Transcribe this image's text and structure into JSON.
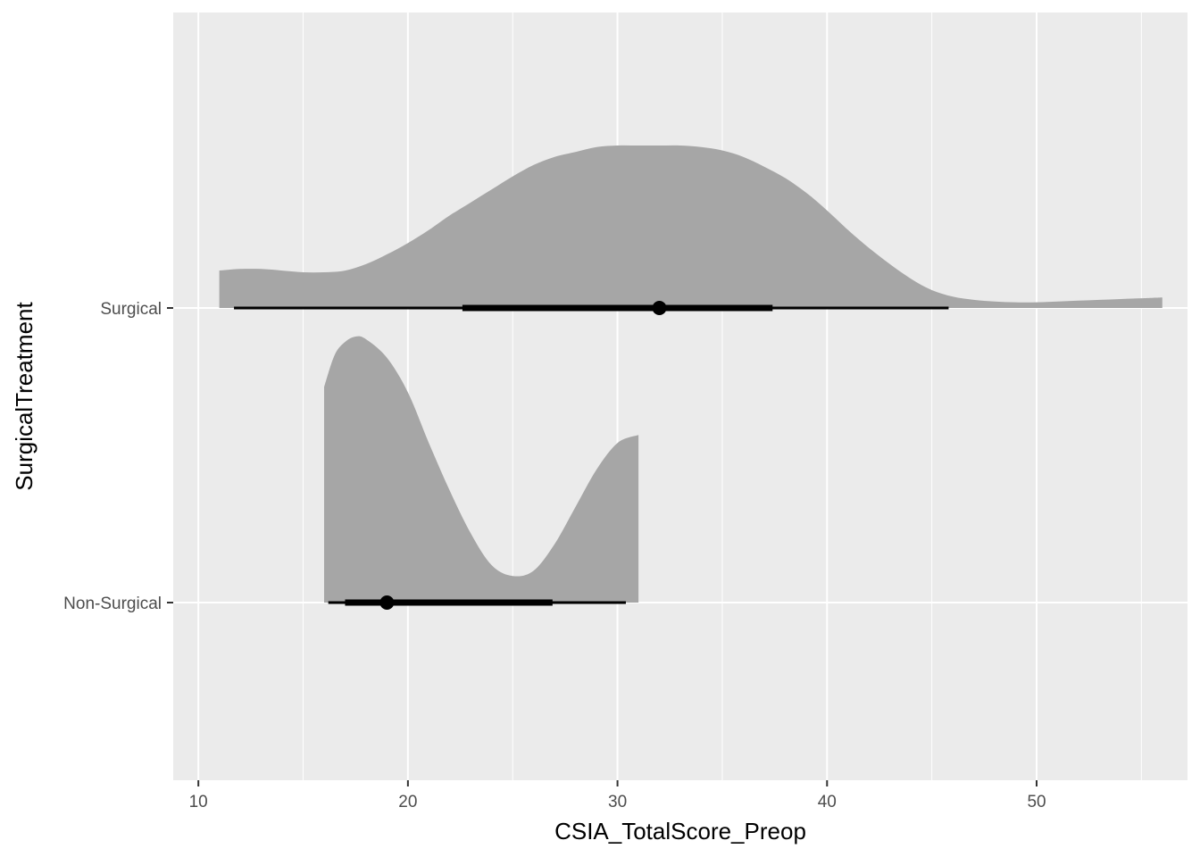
{
  "chart_data": {
    "type": "halfeye",
    "xlabel": "CSIA_TotalScore_Preop",
    "ylabel": "SurgicalTreatment",
    "xlim": [
      8.8,
      57.2
    ],
    "x_ticks": [
      10,
      20,
      30,
      40,
      50
    ],
    "x_minor_ticks": [
      15,
      25,
      35,
      45,
      55
    ],
    "categories": [
      "Non-Surgical",
      "Surgical"
    ],
    "grid": true,
    "colors": {
      "panel": "#ebebeb",
      "grid": "#ffffff",
      "density_fill": "#a6a6a6",
      "interval": "#000000",
      "tick_label": "#4d4d4d"
    },
    "series": [
      {
        "category": "Non-Surgical",
        "density": {
          "x": [
            16,
            16.5,
            17,
            17.5,
            18,
            19,
            20,
            21,
            22,
            23,
            24,
            25,
            26,
            27,
            28,
            29,
            30,
            31
          ],
          "y": [
            0.81,
            0.93,
            0.98,
            1.0,
            0.99,
            0.92,
            0.79,
            0.6,
            0.42,
            0.26,
            0.14,
            0.1,
            0.12,
            0.22,
            0.36,
            0.5,
            0.6,
            0.63
          ]
        },
        "median": 19,
        "interval_66": [
          17,
          26.9
        ],
        "interval_95": [
          16.2,
          30.4
        ]
      },
      {
        "category": "Surgical",
        "density": {
          "x": [
            11,
            12,
            13,
            14,
            15,
            16,
            17,
            18,
            19,
            20,
            21,
            22,
            23,
            24,
            25,
            26,
            27,
            28,
            29,
            30,
            31,
            32,
            33,
            34,
            35,
            36,
            37,
            38,
            39,
            40,
            41,
            42,
            43,
            44,
            45,
            46,
            47,
            48,
            49,
            50,
            51,
            52,
            53,
            54,
            55,
            56
          ],
          "y": [
            0.23,
            0.24,
            0.24,
            0.23,
            0.22,
            0.22,
            0.23,
            0.27,
            0.33,
            0.4,
            0.48,
            0.57,
            0.65,
            0.73,
            0.81,
            0.88,
            0.93,
            0.96,
            0.99,
            1.0,
            1.0,
            1.0,
            1.0,
            0.99,
            0.97,
            0.93,
            0.87,
            0.8,
            0.71,
            0.6,
            0.48,
            0.37,
            0.27,
            0.18,
            0.11,
            0.07,
            0.05,
            0.04,
            0.035,
            0.035,
            0.04,
            0.045,
            0.05,
            0.055,
            0.06,
            0.065
          ]
        },
        "median": 32,
        "interval_66": [
          22.6,
          37.4
        ],
        "interval_95": [
          11.7,
          45.8
        ]
      }
    ]
  }
}
